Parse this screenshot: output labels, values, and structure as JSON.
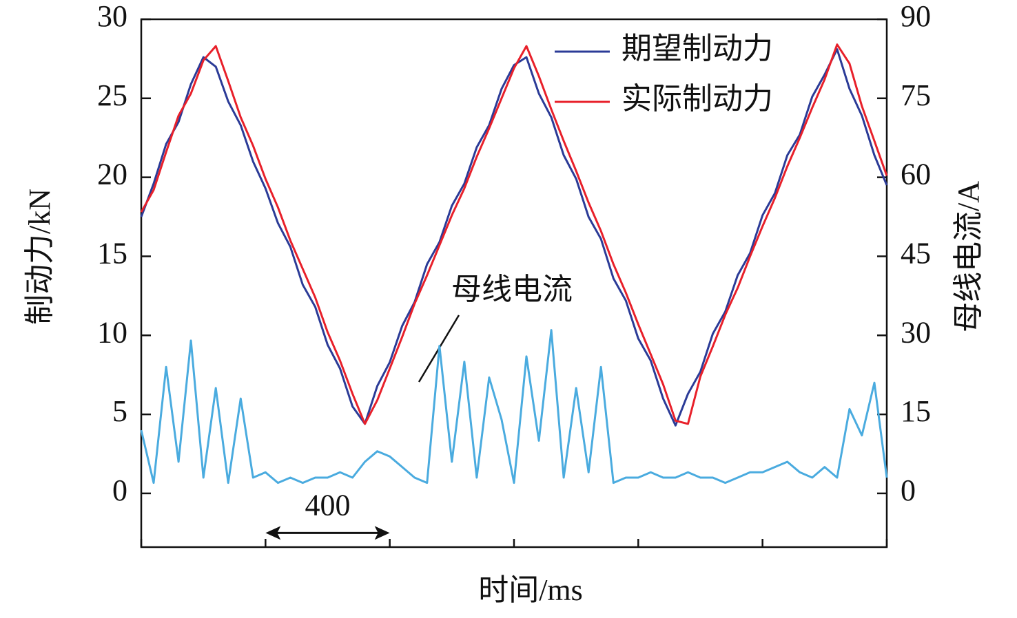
{
  "chart_data": {
    "type": "line",
    "xlabel": "时间/ms",
    "ylabel": "制动力/kN",
    "y2label": "母线电流/A",
    "x": [
      0,
      40,
      80,
      120,
      160,
      200,
      240,
      280,
      320,
      360,
      400,
      440,
      480,
      520,
      560,
      600,
      640,
      680,
      720,
      760,
      800,
      840,
      880,
      920,
      960,
      1000,
      1040,
      1080,
      1120,
      1160,
      1200,
      1240,
      1280,
      1320,
      1360,
      1400,
      1440,
      1480,
      1520,
      1560,
      1600,
      1640,
      1680,
      1720,
      1760,
      1800,
      1840,
      1880,
      1920,
      1960,
      2000,
      2040,
      2080,
      2120,
      2160,
      2200,
      2240,
      2280,
      2320,
      2360,
      2400
    ],
    "series": [
      {
        "name": "期望制动力",
        "color": "#2b3b97",
        "values": [
          17.5,
          19.6,
          22.1,
          23.5,
          25.9,
          27.6,
          27.0,
          24.8,
          23.3,
          21.0,
          19.3,
          17.1,
          15.6,
          13.2,
          11.8,
          9.4,
          7.9,
          5.5,
          4.4,
          6.8,
          8.3,
          10.6,
          12.1,
          14.5,
          15.9,
          18.2,
          19.6,
          21.9,
          23.3,
          25.6,
          27.1,
          27.6,
          25.3,
          23.8,
          21.4,
          19.9,
          17.5,
          16.1,
          13.6,
          12.2,
          9.8,
          8.4,
          6.0,
          4.3,
          6.3,
          7.7,
          10.1,
          11.5,
          13.8,
          15.2,
          17.6,
          19.0,
          21.4,
          22.7,
          25.1,
          26.5,
          28.1,
          25.6,
          23.9,
          21.4,
          19.5
        ]
      },
      {
        "name": "实际制动力",
        "color": "#e8202a",
        "values": [
          17.8,
          19.2,
          21.6,
          23.9,
          25.3,
          27.4,
          28.3,
          26.1,
          23.8,
          22.0,
          19.9,
          18.1,
          16.0,
          14.2,
          12.4,
          10.2,
          8.4,
          6.3,
          4.4,
          5.9,
          7.9,
          9.9,
          12.0,
          13.8,
          15.7,
          17.6,
          19.3,
          21.3,
          23.1,
          25.0,
          26.9,
          28.3,
          26.4,
          24.3,
          22.3,
          20.4,
          18.4,
          16.6,
          14.5,
          12.7,
          10.7,
          8.8,
          6.9,
          4.6,
          4.4,
          7.4,
          9.3,
          11.3,
          13.0,
          15.0,
          16.9,
          18.7,
          20.7,
          22.5,
          24.4,
          26.2,
          28.4,
          27.2,
          24.5,
          22.3,
          20.1
        ]
      },
      {
        "name": "母线电流",
        "color": "#4aabdf",
        "axis": "y2",
        "values": [
          12,
          2,
          24,
          6,
          29,
          3,
          20,
          2,
          18,
          3,
          4,
          2,
          3,
          2,
          3,
          3,
          4,
          3,
          6,
          8,
          7,
          5,
          3,
          2,
          28,
          6,
          25,
          3,
          22,
          14,
          2,
          26,
          10,
          31,
          3,
          20,
          4,
          24,
          2,
          3,
          3,
          4,
          3,
          3,
          4,
          3,
          3,
          2,
          3,
          4,
          4,
          5,
          6,
          4,
          3,
          5,
          3,
          16,
          11,
          21,
          3
        ]
      }
    ],
    "xlim": [
      0,
      2400
    ],
    "xticks": [
      0,
      400,
      800,
      1200,
      1600,
      2000,
      2400
    ],
    "ylim": [
      -3.4,
      30
    ],
    "yticks": [
      0,
      5,
      10,
      15,
      20,
      25,
      30
    ],
    "y2lim": [
      -10.2,
      90
    ],
    "y2ticks": [
      0,
      15,
      30,
      45,
      60,
      75,
      90
    ],
    "annotations": [
      {
        "text": "400",
        "x": [
          400,
          800
        ],
        "y": -2.5
      },
      {
        "text": "母线电流"
      }
    ],
    "legend": "upper right"
  }
}
